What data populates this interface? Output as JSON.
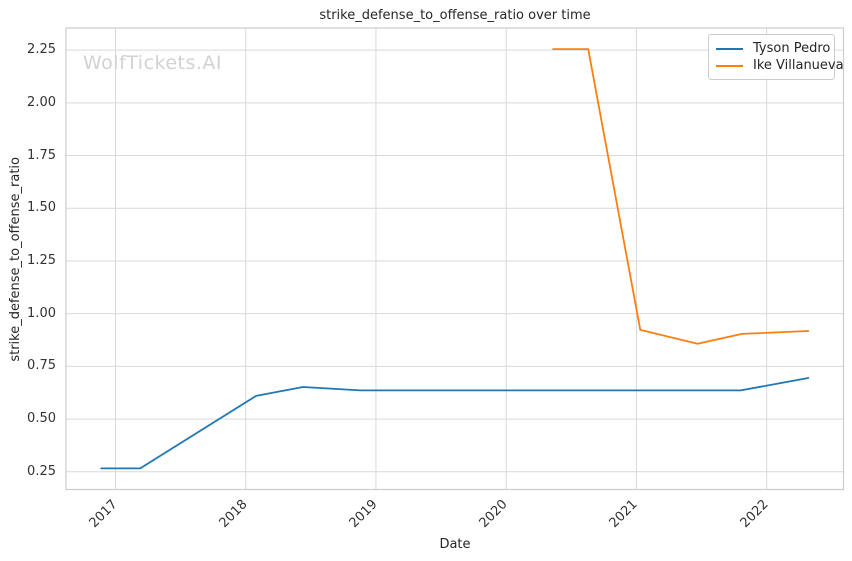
{
  "watermark": "WolfTickets.AI",
  "chart_data": {
    "type": "line",
    "title": "strike_defense_to_offense_ratio over time",
    "xlabel": "Date",
    "ylabel": "strike_defense_to_offense_ratio",
    "xlim": [
      2016.62,
      2022.59
    ],
    "ylim": [
      0.166,
      2.355
    ],
    "grid": true,
    "legend_position": "upper right",
    "x_tick_values": [
      2017,
      2018,
      2019,
      2020,
      2021,
      2022
    ],
    "x_tick_labels": [
      "2017",
      "2018",
      "2019",
      "2020",
      "2021",
      "2022"
    ],
    "y_tick_values": [
      0.25,
      0.5,
      0.75,
      1.0,
      1.25,
      1.5,
      1.75,
      2.0,
      2.25
    ],
    "y_tick_labels": [
      "0.25",
      "0.50",
      "0.75",
      "1.00",
      "1.25",
      "1.50",
      "1.75",
      "2.00",
      "2.25"
    ],
    "series": [
      {
        "name": "Tyson Pedro",
        "color": "#1f77b4",
        "x": [
          2016.89,
          2017.19,
          2018.08,
          2018.44,
          2018.88,
          2021.8,
          2022.32
        ],
        "y": [
          0.266,
          0.266,
          0.61,
          0.652,
          0.636,
          0.636,
          0.695
        ]
      },
      {
        "name": "Ike Villanueva",
        "color": "#ff7f0e",
        "x": [
          2020.36,
          2020.63,
          2021.03,
          2021.47,
          2021.81,
          2022.32
        ],
        "y": [
          2.255,
          2.255,
          0.923,
          0.857,
          0.904,
          0.918
        ]
      }
    ]
  },
  "colors": {
    "grid": "#d9d9d9",
    "spine": "#cccccc",
    "text": "#262626",
    "watermark": "#d2d2d2",
    "background": "#ffffff"
  }
}
